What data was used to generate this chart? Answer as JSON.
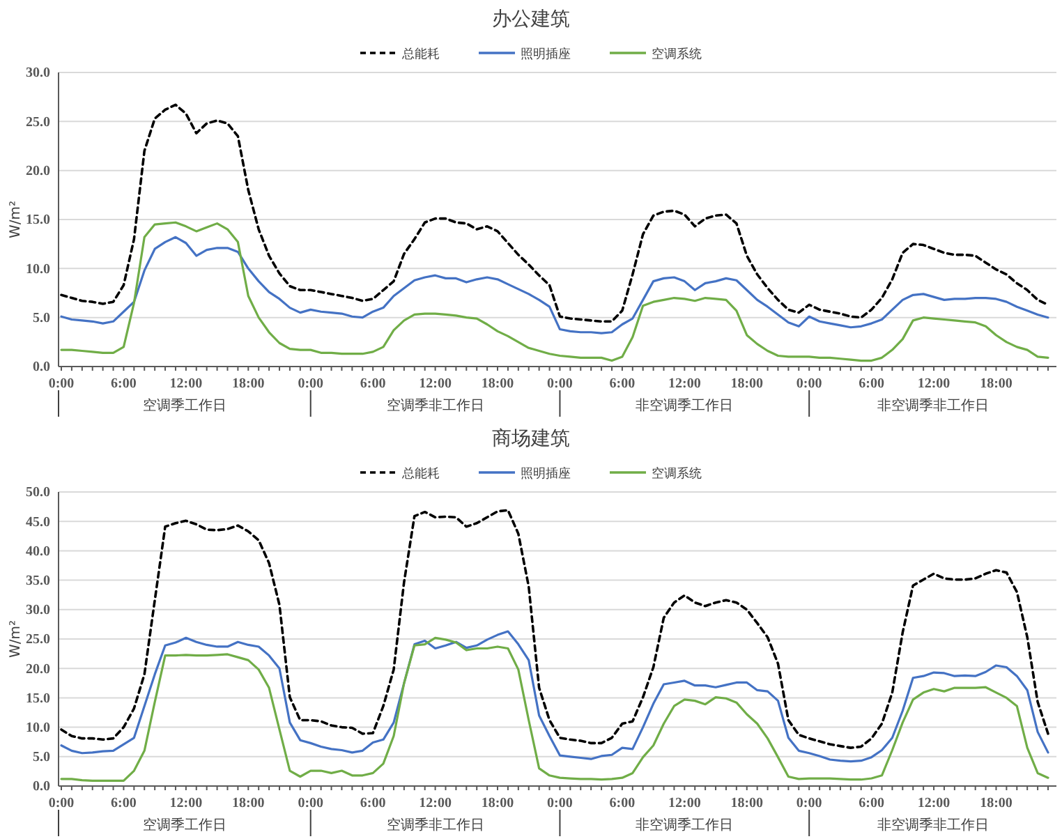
{
  "chart_data": [
    {
      "type": "line",
      "title": "办公建筑",
      "ylabel": "W/m²",
      "legend": "top",
      "grid": "y",
      "categories": [
        "0:00",
        null,
        null,
        null,
        null,
        null,
        "6:00",
        null,
        null,
        null,
        null,
        null,
        "12:00",
        null,
        null,
        null,
        null,
        null,
        "18:00",
        null,
        null,
        null,
        null,
        null,
        "0:00",
        null,
        null,
        null,
        null,
        null,
        "6:00",
        null,
        null,
        null,
        null,
        null,
        "12:00",
        null,
        null,
        null,
        null,
        null,
        "18:00",
        null,
        null,
        null,
        null,
        null,
        "0:00",
        null,
        null,
        null,
        null,
        null,
        "6:00",
        null,
        null,
        null,
        null,
        null,
        "12:00",
        null,
        null,
        null,
        null,
        null,
        "18:00",
        null,
        null,
        null,
        null,
        null,
        "0:00",
        null,
        null,
        null,
        null,
        null,
        "6:00",
        null,
        null,
        null,
        null,
        null,
        "12:00",
        null,
        null,
        null,
        null,
        null,
        "18:00",
        null,
        null,
        null,
        null,
        null
      ],
      "annotations": [
        "空调季工作日",
        "空调季非工作日",
        "非空调季工作日",
        "非空调季非工作日"
      ],
      "ylim": [
        0,
        30
      ],
      "yticks": [
        {
          "value": 0,
          "label": "0.0"
        },
        {
          "value": 5,
          "label": "5.0"
        },
        {
          "value": 10,
          "label": "10.0"
        },
        {
          "value": 15,
          "label": "15.0"
        },
        {
          "value": 20,
          "label": "20.0"
        },
        {
          "value": 25,
          "label": "25.0"
        },
        {
          "value": 30,
          "label": "30.0"
        }
      ],
      "series": [
        {
          "name": "总能耗",
          "color": "#000000",
          "line_style": "dashed",
          "values": [
            7.3,
            7.0,
            6.7,
            6.6,
            6.4,
            6.6,
            8.3,
            13.0,
            22.0,
            25.3,
            26.2,
            26.7,
            25.8,
            23.8,
            24.8,
            25.1,
            24.8,
            23.5,
            18.0,
            14.0,
            11.3,
            9.5,
            8.2,
            7.8,
            7.8,
            7.6,
            7.4,
            7.2,
            7.0,
            6.7,
            6.9,
            7.8,
            8.7,
            11.5,
            13.0,
            14.7,
            15.1,
            15.1,
            14.7,
            14.6,
            14.0,
            14.3,
            13.8,
            12.6,
            11.4,
            10.4,
            9.3,
            8.3,
            5.1,
            4.9,
            4.8,
            4.7,
            4.6,
            4.6,
            5.7,
            9.4,
            13.5,
            15.4,
            15.8,
            15.9,
            15.5,
            14.3,
            15.1,
            15.4,
            15.5,
            14.6,
            11.3,
            9.4,
            8.0,
            6.8,
            5.8,
            5.5,
            6.3,
            5.8,
            5.6,
            5.4,
            5.1,
            5.0,
            5.8,
            7.0,
            8.9,
            11.6,
            12.5,
            12.4,
            12.0,
            11.6,
            11.4,
            11.4,
            11.3,
            10.6,
            9.9,
            9.4,
            8.5,
            7.8,
            6.8,
            6.3
          ]
        },
        {
          "name": "照明插座",
          "color": "#4472c4",
          "line_style": "solid",
          "values": [
            5.1,
            4.8,
            4.7,
            4.6,
            4.4,
            4.6,
            5.6,
            6.6,
            9.8,
            12.0,
            12.7,
            13.2,
            12.6,
            11.3,
            11.9,
            12.1,
            12.1,
            11.7,
            10.0,
            8.7,
            7.6,
            6.9,
            6.0,
            5.5,
            5.8,
            5.6,
            5.5,
            5.4,
            5.1,
            5.0,
            5.6,
            6.0,
            7.2,
            8.0,
            8.8,
            9.1,
            9.3,
            9.0,
            9.0,
            8.6,
            8.9,
            9.1,
            8.9,
            8.4,
            7.9,
            7.4,
            6.8,
            6.1,
            3.8,
            3.6,
            3.5,
            3.5,
            3.4,
            3.5,
            4.3,
            4.9,
            6.8,
            8.7,
            9.0,
            9.1,
            8.7,
            7.8,
            8.5,
            8.7,
            9.0,
            8.8,
            7.8,
            6.8,
            6.1,
            5.3,
            4.5,
            4.1,
            5.1,
            4.6,
            4.4,
            4.2,
            4.0,
            4.1,
            4.4,
            4.8,
            5.8,
            6.8,
            7.3,
            7.4,
            7.1,
            6.8,
            6.9,
            6.9,
            7.0,
            7.0,
            6.9,
            6.6,
            6.1,
            5.7,
            5.3,
            5.0
          ]
        },
        {
          "name": "空调系统",
          "color": "#70ad47",
          "line_style": "solid",
          "values": [
            1.7,
            1.7,
            1.6,
            1.5,
            1.4,
            1.4,
            2.0,
            6.5,
            13.2,
            14.5,
            14.6,
            14.7,
            14.3,
            13.8,
            14.2,
            14.6,
            14.0,
            12.7,
            7.2,
            5.0,
            3.5,
            2.4,
            1.8,
            1.7,
            1.7,
            1.4,
            1.4,
            1.3,
            1.3,
            1.3,
            1.5,
            2.0,
            3.7,
            4.7,
            5.3,
            5.4,
            5.4,
            5.3,
            5.2,
            5.0,
            4.9,
            4.3,
            3.6,
            3.1,
            2.5,
            1.9,
            1.6,
            1.3,
            1.1,
            1.0,
            0.9,
            0.9,
            0.9,
            0.6,
            1.0,
            3.0,
            6.2,
            6.6,
            6.8,
            7.0,
            6.9,
            6.7,
            7.0,
            6.9,
            6.8,
            5.7,
            3.2,
            2.3,
            1.6,
            1.1,
            1.0,
            1.0,
            1.0,
            0.9,
            0.9,
            0.8,
            0.7,
            0.6,
            0.6,
            0.9,
            1.7,
            2.8,
            4.7,
            5.0,
            4.9,
            4.8,
            4.7,
            4.6,
            4.5,
            4.1,
            3.2,
            2.5,
            2.0,
            1.7,
            1.0,
            0.9
          ]
        }
      ]
    },
    {
      "type": "line",
      "title": "商场建筑",
      "ylabel": "W/m²",
      "legend": "top",
      "grid": "y",
      "categories": [
        "0:00",
        null,
        null,
        null,
        null,
        null,
        "6:00",
        null,
        null,
        null,
        null,
        null,
        "12:00",
        null,
        null,
        null,
        null,
        null,
        "18:00",
        null,
        null,
        null,
        null,
        null,
        "0:00",
        null,
        null,
        null,
        null,
        null,
        "6:00",
        null,
        null,
        null,
        null,
        null,
        "12:00",
        null,
        null,
        null,
        null,
        null,
        "18:00",
        null,
        null,
        null,
        null,
        null,
        "0:00",
        null,
        null,
        null,
        null,
        null,
        "6:00",
        null,
        null,
        null,
        null,
        null,
        "12:00",
        null,
        null,
        null,
        null,
        null,
        "18:00",
        null,
        null,
        null,
        null,
        null,
        "0:00",
        null,
        null,
        null,
        null,
        null,
        "6:00",
        null,
        null,
        null,
        null,
        null,
        "12:00",
        null,
        null,
        null,
        null,
        null,
        "18:00",
        null,
        null,
        null,
        null,
        null
      ],
      "annotations": [
        "空调季工作日",
        "空调季非工作日",
        "非空调季工作日",
        "非空调季非工作日"
      ],
      "ylim": [
        0,
        50
      ],
      "yticks": [
        {
          "value": 0,
          "label": "0.0"
        },
        {
          "value": 5,
          "label": "5.0"
        },
        {
          "value": 10,
          "label": "10.0"
        },
        {
          "value": 15,
          "label": "15.0"
        },
        {
          "value": 20,
          "label": "20.0"
        },
        {
          "value": 25,
          "label": "25.0"
        },
        {
          "value": 30,
          "label": "30.0"
        },
        {
          "value": 35,
          "label": "35.0"
        },
        {
          "value": 40,
          "label": "40.0"
        },
        {
          "value": 45,
          "label": "45.0"
        },
        {
          "value": 50,
          "label": "50.0"
        }
      ],
      "series": [
        {
          "name": "总能耗",
          "color": "#000000",
          "line_style": "dashed",
          "values": [
            9.6,
            8.5,
            8.1,
            8.1,
            7.9,
            8.1,
            10.0,
            13.2,
            19.0,
            31.6,
            44.1,
            44.7,
            45.1,
            44.5,
            43.6,
            43.5,
            43.7,
            44.3,
            43.3,
            41.8,
            37.9,
            30.8,
            15.1,
            11.2,
            11.2,
            11.0,
            10.3,
            10.0,
            9.9,
            8.9,
            9.0,
            13.6,
            19.8,
            34.7,
            45.9,
            46.6,
            45.7,
            45.8,
            45.7,
            44.1,
            44.7,
            45.7,
            46.7,
            46.9,
            42.9,
            33.9,
            16.7,
            11.2,
            8.2,
            7.9,
            7.7,
            7.3,
            7.3,
            8.2,
            10.6,
            11.0,
            15.1,
            20.2,
            28.6,
            31.2,
            32.4,
            31.2,
            30.6,
            31.2,
            31.6,
            31.2,
            30.0,
            27.7,
            25.3,
            20.8,
            11.2,
            8.7,
            8.1,
            7.6,
            7.1,
            6.8,
            6.5,
            6.7,
            8.1,
            10.6,
            15.9,
            26.1,
            34.1,
            35.1,
            36.1,
            35.3,
            35.1,
            35.1,
            35.3,
            36.1,
            36.7,
            36.3,
            33.0,
            25.3,
            14.3,
            8.9
          ]
        },
        {
          "name": "照明插座",
          "color": "#4472c4",
          "line_style": "solid",
          "values": [
            6.9,
            6.0,
            5.6,
            5.7,
            5.9,
            6.0,
            7.1,
            8.2,
            13.6,
            19.0,
            23.9,
            24.4,
            25.2,
            24.5,
            24.0,
            23.7,
            23.7,
            24.5,
            24.0,
            23.7,
            22.2,
            20.0,
            10.8,
            7.8,
            7.3,
            6.7,
            6.3,
            6.1,
            5.7,
            6.0,
            7.4,
            7.9,
            10.8,
            17.5,
            24.1,
            24.7,
            23.4,
            23.9,
            24.5,
            23.5,
            23.9,
            24.9,
            25.7,
            26.3,
            24.1,
            21.4,
            12.0,
            8.5,
            5.2,
            5.0,
            4.8,
            4.6,
            5.1,
            5.3,
            6.5,
            6.3,
            10.0,
            14.0,
            17.3,
            17.6,
            17.9,
            17.1,
            17.1,
            16.8,
            17.2,
            17.6,
            17.6,
            16.3,
            16.1,
            14.5,
            8.2,
            6.0,
            5.6,
            5.1,
            4.5,
            4.3,
            4.2,
            4.3,
            4.9,
            6.1,
            8.2,
            12.8,
            18.4,
            18.7,
            19.3,
            19.2,
            18.7,
            18.8,
            18.7,
            19.4,
            20.5,
            20.2,
            18.7,
            16.3,
            9.2,
            5.7
          ]
        },
        {
          "name": "空调系统",
          "color": "#70ad47",
          "line_style": "solid",
          "values": [
            1.2,
            1.2,
            1.0,
            0.9,
            0.9,
            0.9,
            0.9,
            2.6,
            6.0,
            14.3,
            22.2,
            22.2,
            22.3,
            22.2,
            22.2,
            22.3,
            22.4,
            21.9,
            21.4,
            19.8,
            16.7,
            9.6,
            2.6,
            1.6,
            2.6,
            2.6,
            2.2,
            2.6,
            1.8,
            1.8,
            2.2,
            3.8,
            8.5,
            17.5,
            23.9,
            24.1,
            25.2,
            24.9,
            24.4,
            23.1,
            23.4,
            23.4,
            23.7,
            23.4,
            19.8,
            11.2,
            3.0,
            1.8,
            1.4,
            1.3,
            1.2,
            1.2,
            1.1,
            1.2,
            1.4,
            2.2,
            4.9,
            6.9,
            10.6,
            13.6,
            14.7,
            14.5,
            13.9,
            15.1,
            14.9,
            14.2,
            12.2,
            10.6,
            8.1,
            4.9,
            1.6,
            1.2,
            1.3,
            1.3,
            1.3,
            1.2,
            1.1,
            1.1,
            1.3,
            1.8,
            6.1,
            10.8,
            14.7,
            15.9,
            16.5,
            16.1,
            16.7,
            16.7,
            16.7,
            16.8,
            15.9,
            15.0,
            13.6,
            6.5,
            2.2,
            1.4
          ]
        }
      ]
    }
  ]
}
